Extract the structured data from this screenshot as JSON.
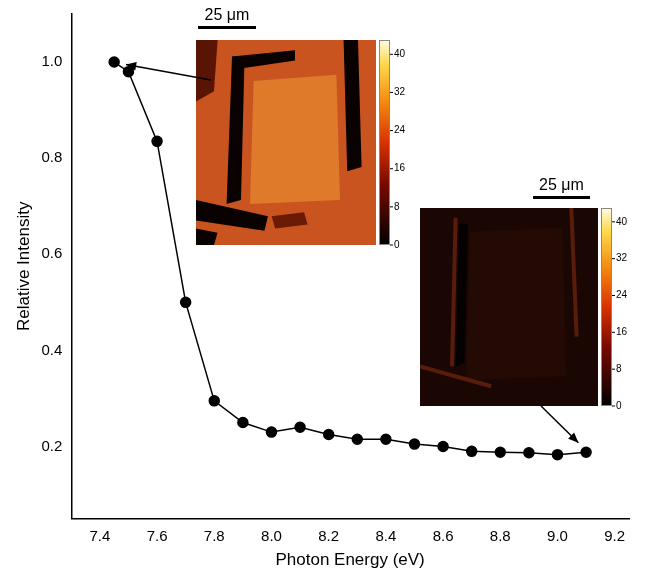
{
  "chart_data": {
    "type": "line",
    "x_label": "Photon Energy (eV)",
    "y_label": "Relative Intensity",
    "x": [
      7.45,
      7.5,
      7.6,
      7.7,
      7.8,
      7.9,
      8.0,
      8.1,
      8.2,
      8.3,
      8.4,
      8.5,
      8.6,
      8.7,
      8.8,
      8.9,
      9.0,
      9.1
    ],
    "values": [
      1.0,
      0.98,
      0.835,
      0.5,
      0.295,
      0.25,
      0.23,
      0.24,
      0.225,
      0.215,
      0.215,
      0.205,
      0.2,
      0.19,
      0.188,
      0.187,
      0.183,
      0.188
    ],
    "color": "#000000",
    "marker": "circle",
    "line_style": "solid",
    "xlim": [
      7.3,
      9.25
    ],
    "ylim": [
      0.05,
      1.1
    ],
    "xticks": [
      7.4,
      7.6,
      7.8,
      {
        "value": 8,
        "label": "8.0"
      },
      8.2,
      8.4,
      8.6,
      8.8,
      {
        "value": 9,
        "label": "9.0"
      },
      9.2
    ],
    "yticks": [
      0.2,
      0.4,
      0.6,
      0.8,
      {
        "value": 1,
        "label": "1.0"
      }
    ],
    "grid": false
  },
  "insets": [
    {
      "scale_bar": "25 μm",
      "colorbar": {
        "range": [
          0,
          43
        ],
        "ticks": [
          0,
          8,
          16,
          24,
          32,
          40
        ]
      }
    },
    {
      "scale_bar": "25 μm",
      "colorbar": {
        "range": [
          0,
          43
        ],
        "ticks": [
          0,
          8,
          16,
          24,
          32,
          40
        ]
      }
    }
  ]
}
